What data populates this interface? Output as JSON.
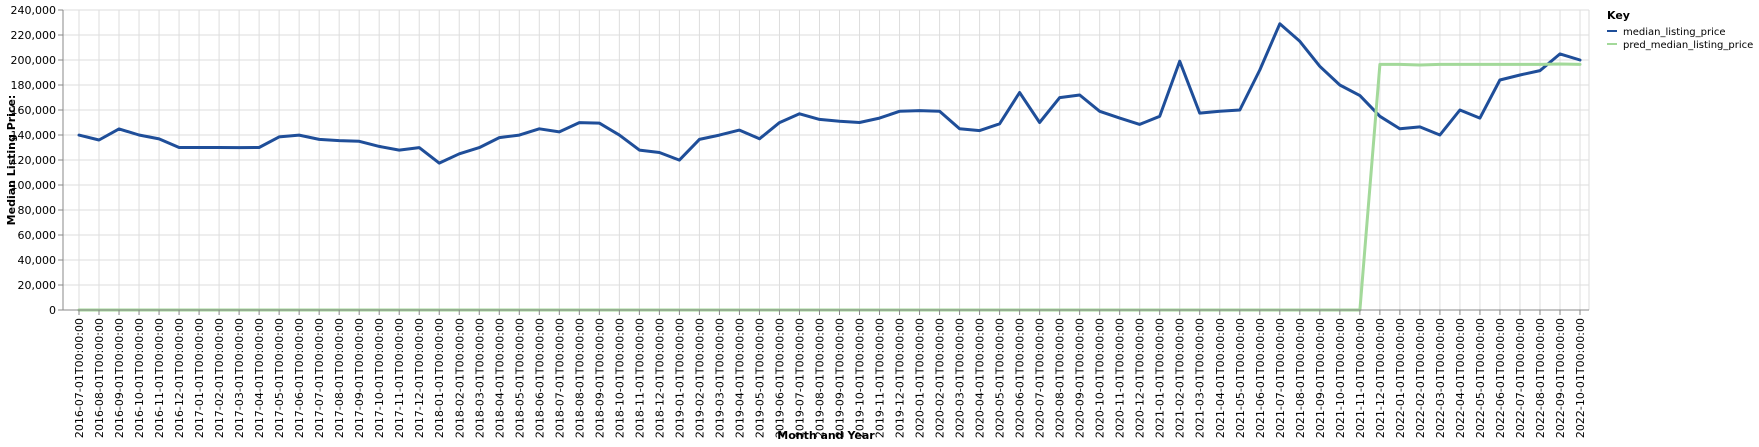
{
  "chart_data": {
    "type": "line",
    "xlabel": "Month and Year",
    "ylabel": "Median Listing Price:",
    "ylim": [
      0,
      240000
    ],
    "y_ticks": [
      "0",
      "20,000",
      "40,000",
      "60,000",
      "80,000",
      "100,000",
      "120,000",
      "140,000",
      "160,000",
      "180,000",
      "200,000",
      "220,000",
      "240,000"
    ],
    "grid": true,
    "legend_title": "Key",
    "legend_position": "right",
    "categories": [
      "2016-07-01T00:00:00",
      "2016-08-01T00:00:00",
      "2016-09-01T00:00:00",
      "2016-10-01T00:00:00",
      "2016-11-01T00:00:00",
      "2016-12-01T00:00:00",
      "2017-01-01T00:00:00",
      "2017-02-01T00:00:00",
      "2017-03-01T00:00:00",
      "2017-04-01T00:00:00",
      "2017-05-01T00:00:00",
      "2017-06-01T00:00:00",
      "2017-07-01T00:00:00",
      "2017-08-01T00:00:00",
      "2017-09-01T00:00:00",
      "2017-10-01T00:00:00",
      "2017-11-01T00:00:00",
      "2017-12-01T00:00:00",
      "2018-01-01T00:00:00",
      "2018-02-01T00:00:00",
      "2018-03-01T00:00:00",
      "2018-04-01T00:00:00",
      "2018-05-01T00:00:00",
      "2018-06-01T00:00:00",
      "2018-07-01T00:00:00",
      "2018-08-01T00:00:00",
      "2018-09-01T00:00:00",
      "2018-10-01T00:00:00",
      "2018-11-01T00:00:00",
      "2018-12-01T00:00:00",
      "2019-01-01T00:00:00",
      "2019-02-01T00:00:00",
      "2019-03-01T00:00:00",
      "2019-04-01T00:00:00",
      "2019-05-01T00:00:00",
      "2019-06-01T00:00:00",
      "2019-07-01T00:00:00",
      "2019-08-01T00:00:00",
      "2019-09-01T00:00:00",
      "2019-10-01T00:00:00",
      "2019-11-01T00:00:00",
      "2019-12-01T00:00:00",
      "2020-01-01T00:00:00",
      "2020-02-01T00:00:00",
      "2020-03-01T00:00:00",
      "2020-04-01T00:00:00",
      "2020-05-01T00:00:00",
      "2020-06-01T00:00:00",
      "2020-07-01T00:00:00",
      "2020-08-01T00:00:00",
      "2020-09-01T00:00:00",
      "2020-10-01T00:00:00",
      "2020-11-01T00:00:00",
      "2020-12-01T00:00:00",
      "2021-01-01T00:00:00",
      "2021-02-01T00:00:00",
      "2021-03-01T00:00:00",
      "2021-04-01T00:00:00",
      "2021-05-01T00:00:00",
      "2021-06-01T00:00:00",
      "2021-07-01T00:00:00",
      "2021-08-01T00:00:00",
      "2021-09-01T00:00:00",
      "2021-10-01T00:00:00",
      "2021-11-01T00:00:00",
      "2021-12-01T00:00:00",
      "2022-01-01T00:00:00",
      "2022-02-01T00:00:00",
      "2022-03-01T00:00:00",
      "2022-04-01T00:00:00",
      "2022-05-01T00:00:00",
      "2022-06-01T00:00:00",
      "2022-07-01T00:00:00",
      "2022-08-01T00:00:00",
      "2022-09-01T00:00:00",
      "2022-10-01T00:00:00"
    ],
    "series": [
      {
        "name": "median_listing_price",
        "color": "#1f4e99",
        "values": [
          139900,
          136000,
          144900,
          140000,
          136900,
          130000,
          130000,
          130000,
          129900,
          130000,
          138500,
          139900,
          136500,
          135500,
          135000,
          130900,
          127900,
          129900,
          117500,
          125000,
          129900,
          137900,
          139900,
          145000,
          142500,
          149900,
          149500,
          139900,
          127900,
          126000,
          119900,
          136500,
          139900,
          143900,
          137000,
          149900,
          157000,
          152500,
          151000,
          150000,
          153500,
          159000,
          159500,
          159000,
          145000,
          143500,
          149000,
          174000,
          150000,
          169900,
          172000,
          159000,
          153500,
          148500,
          155000,
          199000,
          157500,
          159000,
          160000,
          192000,
          229000,
          215000,
          195000,
          180000,
          171500,
          155000,
          145000,
          146500,
          140000,
          160000,
          153500,
          184000,
          188000,
          191500,
          204900,
          200000
        ]
      },
      {
        "name": "pred_median_listing_price",
        "color": "#a3d99a",
        "values": [
          0,
          0,
          0,
          0,
          0,
          0,
          0,
          0,
          0,
          0,
          0,
          0,
          0,
          0,
          0,
          0,
          0,
          0,
          0,
          0,
          0,
          0,
          0,
          0,
          0,
          0,
          0,
          0,
          0,
          0,
          0,
          0,
          0,
          0,
          0,
          0,
          0,
          0,
          0,
          0,
          0,
          0,
          0,
          0,
          0,
          0,
          0,
          0,
          0,
          0,
          0,
          0,
          0,
          0,
          0,
          0,
          0,
          0,
          0,
          0,
          0,
          0,
          0,
          0,
          0,
          196500,
          196500,
          196000,
          196500,
          196500,
          196500,
          196500,
          196500,
          196500,
          196800,
          196500
        ]
      }
    ]
  }
}
